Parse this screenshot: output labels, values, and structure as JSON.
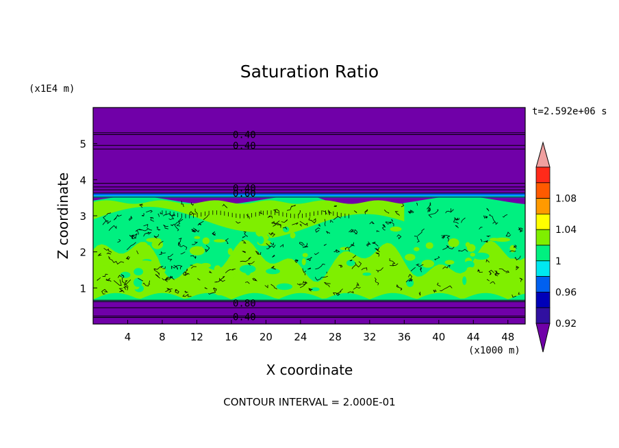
{
  "chart_data": {
    "type": "heatmap",
    "title": "Saturation Ratio",
    "xlabel": "X coordinate",
    "ylabel": "Z coordinate",
    "x_unit_label": "(x1000 m)",
    "y_unit_label": "(x1E4 m)",
    "time_label": "t=2.592e+06 s",
    "contour_interval_label": "CONTOUR INTERVAL = 2.000E-01",
    "xlim": [
      0,
      50
    ],
    "ylim": [
      0,
      6
    ],
    "x_ticks": [
      "4",
      "8",
      "12",
      "16",
      "20",
      "24",
      "28",
      "32",
      "36",
      "40",
      "44",
      "48"
    ],
    "y_ticks": [
      "1",
      "2",
      "3",
      "4",
      "5"
    ],
    "contour_labels": [
      {
        "text": "0.40",
        "x": 17.5,
        "z": 5.25
      },
      {
        "text": "0.40",
        "x": 17.5,
        "z": 4.95
      },
      {
        "text": "0.40",
        "x": 17.5,
        "z": 3.77
      },
      {
        "text": "0.60",
        "x": 17.5,
        "z": 3.63
      },
      {
        "text": "0.80",
        "x": 17.5,
        "z": 0.58
      },
      {
        "text": "0.40",
        "x": 17.5,
        "z": 0.2
      }
    ],
    "colorbar": {
      "labels": [
        "1.08",
        "1.04",
        "1",
        "0.96",
        "0.92"
      ],
      "bins": [
        {
          "upper": "over",
          "color": "#f0a0a0"
        },
        {
          "upper": 1.1,
          "color": "#ff2a1a"
        },
        {
          "upper": 1.08,
          "color": "#ff5a00"
        },
        {
          "upper": 1.06,
          "color": "#ff9a00"
        },
        {
          "upper": 1.04,
          "color": "#ffff00"
        },
        {
          "upper": 1.02,
          "color": "#7fef00"
        },
        {
          "upper": 1.0,
          "color": "#00f080"
        },
        {
          "upper": 0.98,
          "color": "#00e8f0"
        },
        {
          "upper": 0.96,
          "color": "#0060f0"
        },
        {
          "upper": 0.94,
          "color": "#0000b8"
        },
        {
          "upper": 0.92,
          "color": "#3010a0"
        },
        {
          "upper": "under",
          "color": "#7000a8"
        }
      ]
    },
    "field_colors": {
      "dry": "#7000a8",
      "moist_high": "#00f080",
      "moist_low": "#7fef00",
      "blue_band": "#0060f0",
      "cyan_band": "#00e8f0"
    }
  }
}
